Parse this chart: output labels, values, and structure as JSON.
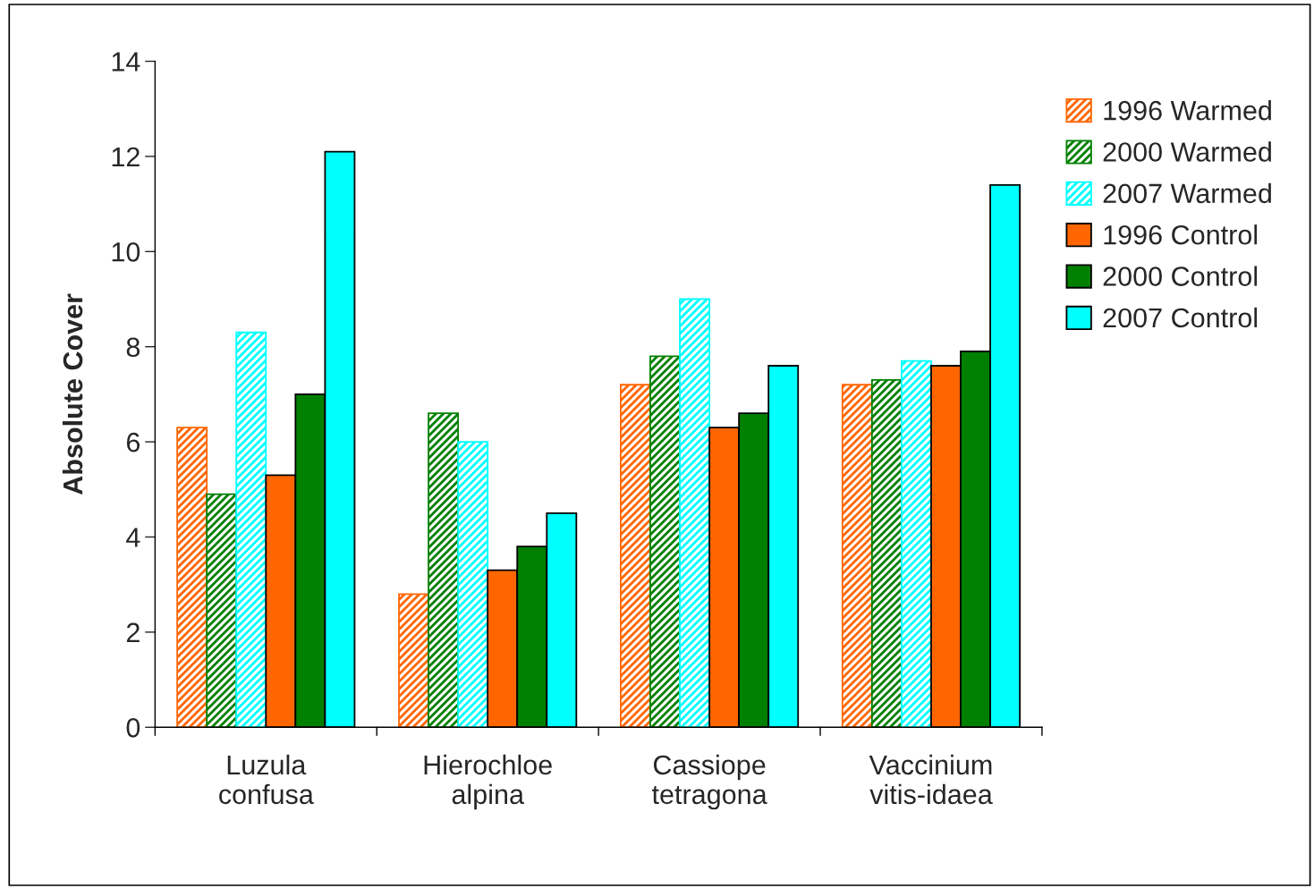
{
  "chart_data": {
    "type": "bar",
    "ylabel": "Absolute Cover",
    "categories": [
      "Luzula\nconfusa",
      "Hierochloe\nalpina",
      "Cassiope\ntetragona",
      "Vaccinium\nvitis-idaea"
    ],
    "series": [
      {
        "name": "1996 Warmed",
        "color": "#ff6600",
        "values": [
          6.3,
          2.8,
          7.2,
          7.2
        ]
      },
      {
        "name": "2000 Warmed",
        "color": "#008000",
        "values": [
          4.9,
          6.6,
          7.8,
          7.3
        ]
      },
      {
        "name": "2007 Warmed",
        "color": "#00ffff",
        "values": [
          8.3,
          6.0,
          9.0,
          7.7
        ]
      },
      {
        "name": "1996 Control",
        "color": "#ff6600",
        "values": [
          5.3,
          3.3,
          6.3,
          7.6
        ]
      },
      {
        "name": "2000 Control",
        "color": "#008000",
        "values": [
          7.0,
          3.8,
          6.6,
          7.9
        ]
      },
      {
        "name": "2007 Control",
        "color": "#00ffff",
        "values": [
          12.1,
          4.5,
          7.6,
          11.4
        ]
      }
    ],
    "ylim": [
      0,
      14
    ],
    "yticks": [
      0,
      2,
      4,
      6,
      8,
      10,
      12,
      14
    ],
    "grid": false,
    "legend": "right"
  }
}
